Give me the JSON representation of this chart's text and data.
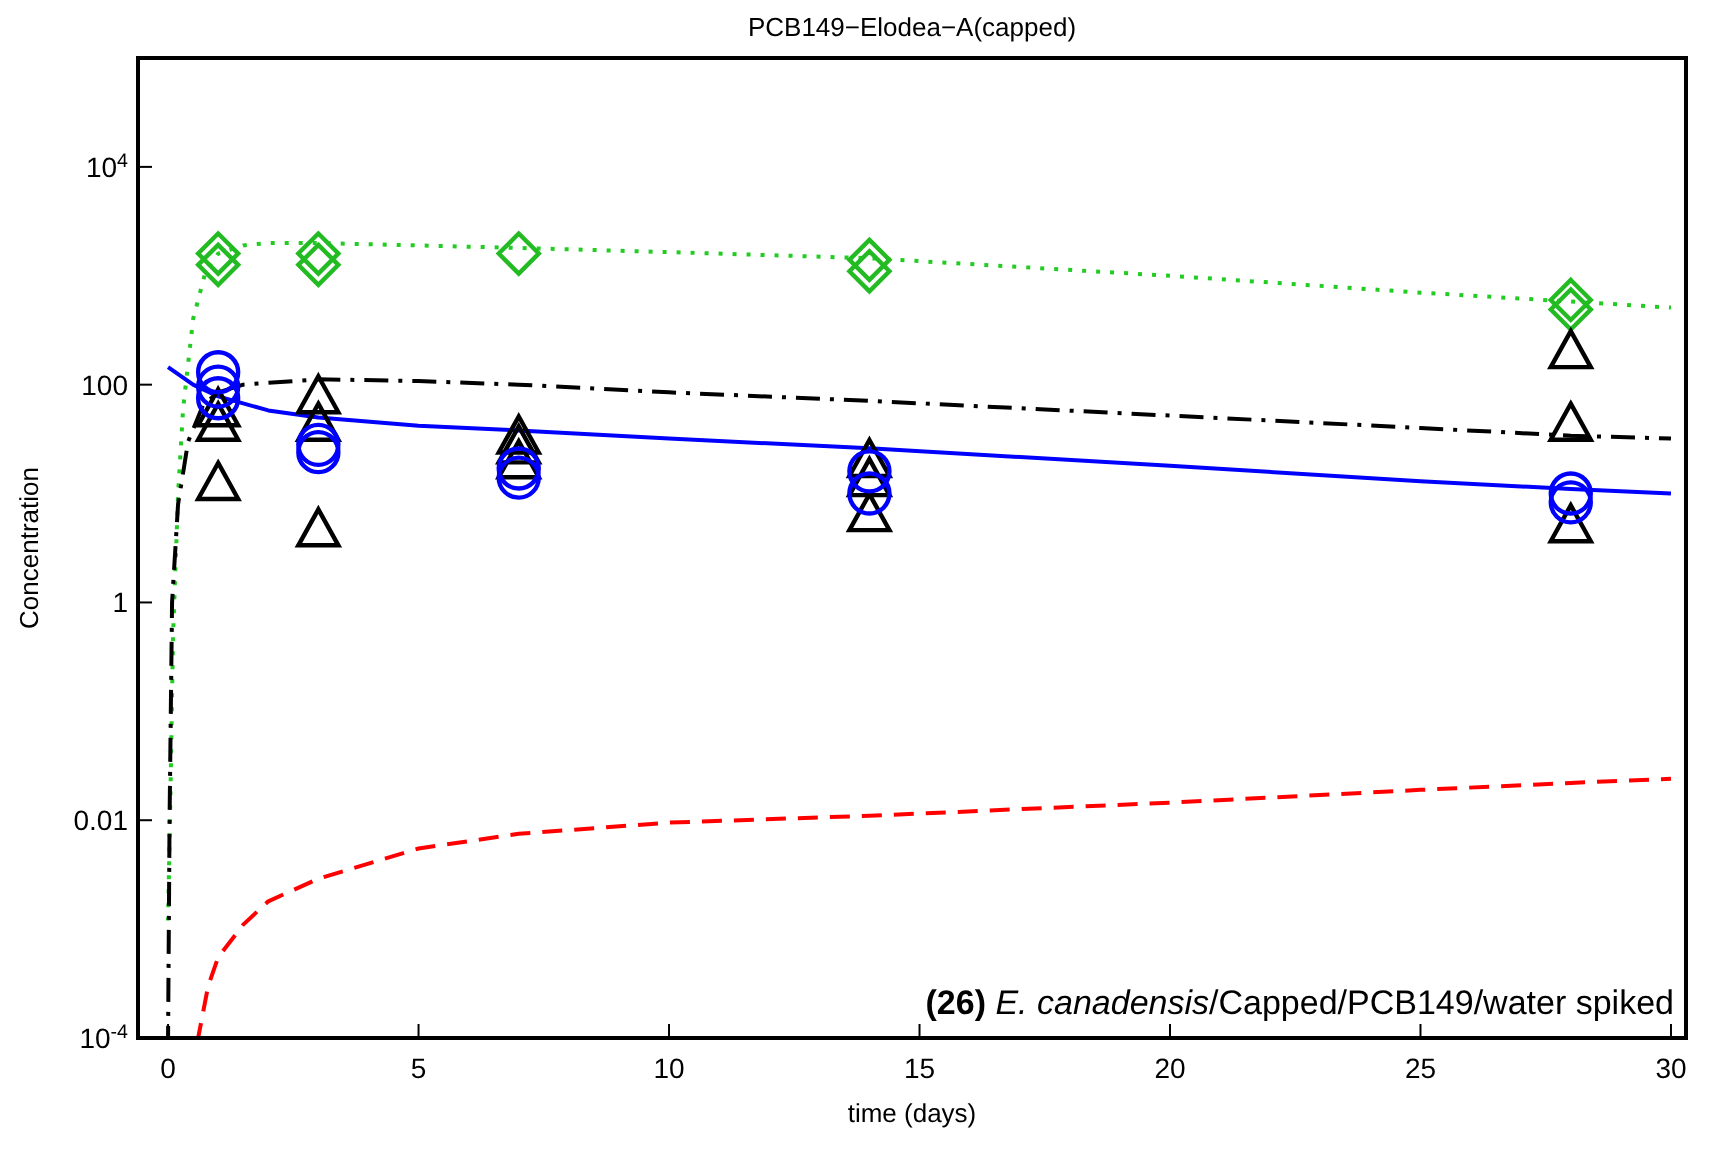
{
  "chart_data": {
    "type": "line",
    "title": "PCB149−Elodea−A(capped)",
    "xlabel": "time (days)",
    "ylabel": "Concentration",
    "log": "y",
    "xlim": [
      -0.6,
      30.3
    ],
    "ylim": [
      0.0001,
      100000
    ],
    "xticks": [
      0,
      5,
      10,
      15,
      20,
      25,
      30
    ],
    "yticks": [
      {
        "value": 10000,
        "label": "10$^{4}$"
      },
      100,
      1,
      0.01,
      {
        "value": 0.0001,
        "label": "10$^{-4}$"
      }
    ],
    "grid": false,
    "annotations": [
      "(26) E. canadensis/Capped/PCB149/water spiked"
    ],
    "series": [
      {
        "color": "#22cc22",
        "line_style": "dotted",
        "x": [
          0,
          0.05,
          0.1,
          0.2,
          0.3,
          0.5,
          0.75,
          1,
          1.5,
          2,
          3,
          5,
          7,
          10,
          14,
          20,
          25,
          28,
          30
        ],
        "values": [
          0.0012,
          0.02,
          0.5,
          10,
          60,
          400,
          1100,
          1600,
          1900,
          2000,
          2000,
          1900,
          1800,
          1650,
          1450,
          1000,
          700,
          580,
          510
        ]
      },
      {
        "color": "#000000",
        "line_style": "dashdot",
        "x": [
          0,
          0.03,
          0.08,
          0.2,
          0.4,
          0.7,
          1,
          1.5,
          3,
          5,
          7,
          10,
          14,
          20,
          25,
          28,
          30
        ],
        "values": [
          0.0001,
          0.01,
          1,
          8,
          30,
          65,
          85,
          100,
          112,
          108,
          100,
          85,
          71,
          52,
          40,
          34,
          32
        ]
      },
      {
        "color": "#0000ff",
        "line_style": "solid",
        "x": [
          0,
          0.5,
          1,
          2,
          3,
          5,
          7,
          10,
          14,
          20,
          25,
          28,
          30
        ],
        "values": [
          145,
          100,
          78,
          58,
          50,
          42,
          38,
          32,
          26,
          18,
          13,
          11,
          10
        ]
      },
      {
        "color": "#ff0000",
        "line_style": "dashed",
        "x": [
          0.6,
          0.8,
          1,
          1.5,
          2,
          3,
          5,
          7,
          10,
          14,
          20,
          25,
          28,
          30
        ],
        "values": [
          0.0001,
          0.0003,
          0.00055,
          0.0011,
          0.0018,
          0.0029,
          0.0055,
          0.0075,
          0.0095,
          0.011,
          0.0145,
          0.019,
          0.022,
          0.024
        ]
      },
      {
        "type": "scatter",
        "color": "#22bb22",
        "marker": "diamond",
        "x": [
          1,
          1,
          3,
          3,
          7,
          14,
          14,
          28,
          28
        ],
        "values": [
          1600,
          1260,
          1600,
          1260,
          1600,
          1400,
          1100,
          600,
          490
        ]
      },
      {
        "type": "scatter",
        "color": "#000000",
        "marker": "triangle",
        "x": [
          1,
          1,
          1,
          3,
          3,
          3,
          7,
          7,
          7,
          14,
          14,
          14,
          28,
          28,
          28
        ],
        "values": [
          57,
          42,
          12,
          75,
          42,
          4.5,
          32,
          26,
          19,
          19.5,
          13,
          6.2,
          195,
          42,
          4.9
        ]
      },
      {
        "type": "scatter",
        "color": "#0000ff",
        "marker": "circle",
        "x": [
          1,
          1,
          1,
          3,
          3,
          7,
          7,
          14,
          14,
          28,
          28
        ],
        "values": [
          130,
          96,
          75,
          28,
          24,
          17,
          14,
          16,
          10,
          10,
          8.3
        ]
      }
    ]
  }
}
